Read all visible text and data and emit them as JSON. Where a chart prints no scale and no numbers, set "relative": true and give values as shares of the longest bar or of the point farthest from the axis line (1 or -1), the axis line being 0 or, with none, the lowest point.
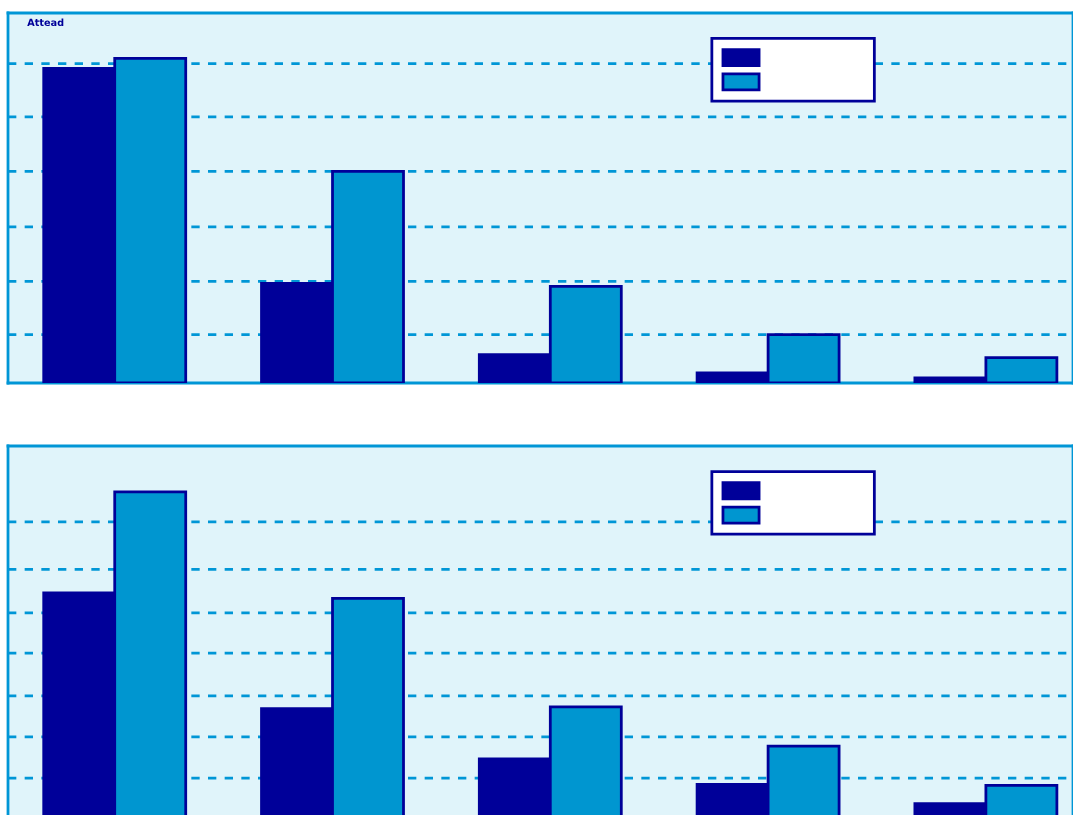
{
  "chart_data": [
    {
      "type": "bar",
      "relative": true,
      "categories": [
        null,
        null,
        null,
        null,
        null
      ],
      "annotations": [
        "Attead"
      ],
      "ref_lines": [
        {
          "axis": "y",
          "value": 0.149,
          "color": "#0096d6",
          "line_style": "dashed"
        },
        {
          "axis": "y",
          "value": 0.313,
          "color": "#0096d6",
          "line_style": "dashed"
        },
        {
          "axis": "y",
          "value": 0.481,
          "color": "#0096d6",
          "line_style": "dashed"
        },
        {
          "axis": "y",
          "value": 0.652,
          "color": "#0096d6",
          "line_style": "dashed"
        },
        {
          "axis": "y",
          "value": 0.82,
          "color": "#0096d6",
          "line_style": "dashed"
        },
        {
          "axis": "y",
          "value": 0.984,
          "color": "#0096d6",
          "line_style": "dashed"
        }
      ],
      "series": [
        {
          "color": "#000099",
          "values": [
            0.969,
            0.307,
            0.087,
            0.031,
            0.016
          ]
        },
        {
          "color": "#0096d0",
          "values": [
            1.0,
            0.652,
            0.298,
            0.149,
            0.078
          ]
        }
      ]
    },
    {
      "type": "bar",
      "relative": true,
      "categories": [
        null,
        null,
        null,
        null,
        null
      ],
      "ref_lines": [
        {
          "axis": "y",
          "value": 0.125,
          "color": "#0096d6",
          "line_style": "dashed"
        },
        {
          "axis": "y",
          "value": 0.251,
          "color": "#0096d6",
          "line_style": "dashed"
        },
        {
          "axis": "y",
          "value": 0.376,
          "color": "#0096d6",
          "line_style": "dashed"
        },
        {
          "axis": "y",
          "value": 0.507,
          "color": "#0096d6",
          "line_style": "dashed"
        },
        {
          "axis": "y",
          "value": 0.63,
          "color": "#0096d6",
          "line_style": "dashed"
        },
        {
          "axis": "y",
          "value": 0.763,
          "color": "#0096d6",
          "line_style": "dashed"
        },
        {
          "axis": "y",
          "value": 0.908,
          "color": "#0096d6",
          "line_style": "dashed"
        }
      ],
      "series": [
        {
          "color": "#000099",
          "values": [
            0.691,
            0.337,
            0.184,
            0.106,
            0.047
          ]
        },
        {
          "color": "#0096d0",
          "values": [
            1.0,
            0.674,
            0.343,
            0.223,
            0.103
          ]
        }
      ]
    }
  ]
}
